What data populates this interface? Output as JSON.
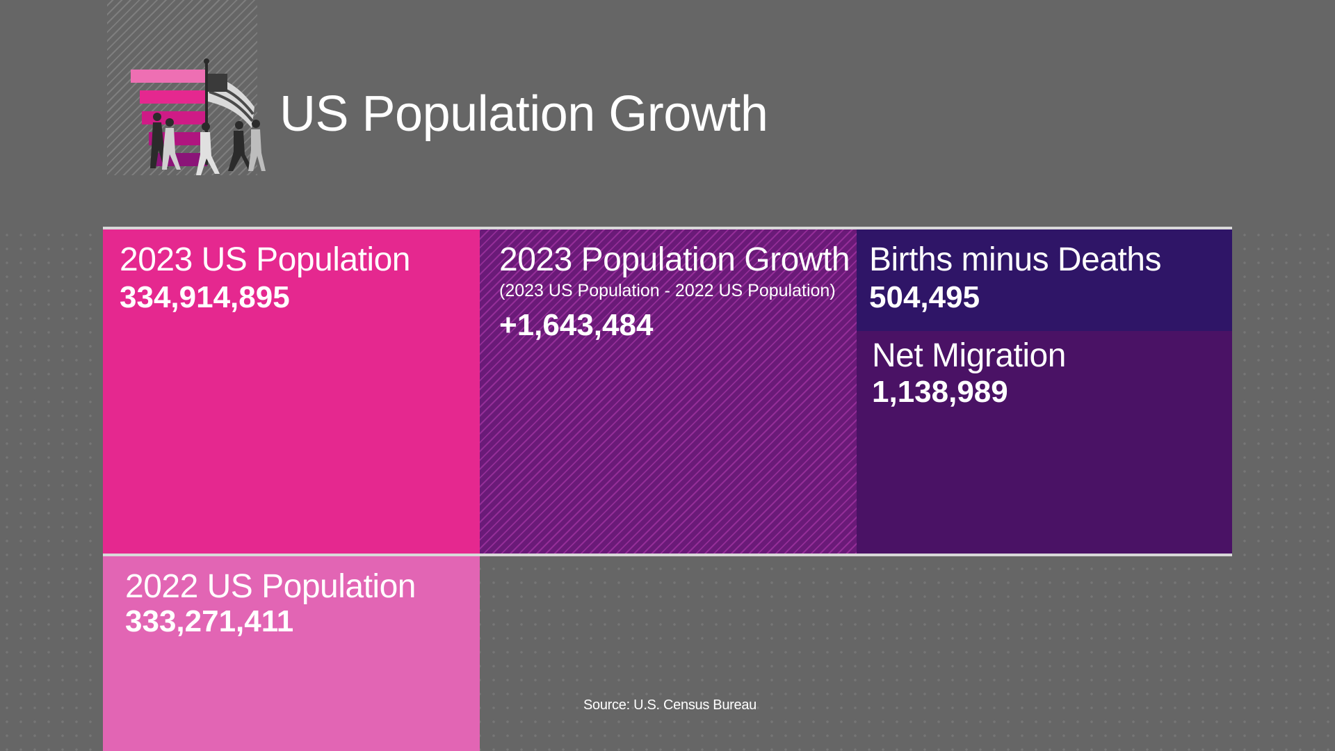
{
  "header": {
    "title": "US Population Growth"
  },
  "colors": {
    "background": "#666666",
    "pink": "#e5288f",
    "light_pink": "#e265b4",
    "hatched_purple": "#6a1a78",
    "dark_purple": "#2f1567",
    "purple": "#4a1265"
  },
  "tiles": {
    "pop_2023": {
      "label": "2023 US Population",
      "value": "334,914,895"
    },
    "growth": {
      "label": "2023 Population Growth",
      "sublabel": "(2023 US Population - 2022 US Population)",
      "value": "+1,643,484"
    },
    "births_deaths": {
      "label": "Births minus Deaths",
      "value": "504,495"
    },
    "net_migration": {
      "label": "Net Migration",
      "value": "1,138,989"
    },
    "pop_2022": {
      "label": "2022 US Population",
      "value": "333,271,411"
    }
  },
  "footer": {
    "source": "Source: U.S. Census Bureau"
  },
  "icons": [
    "flag-bar-chart-icon"
  ]
}
